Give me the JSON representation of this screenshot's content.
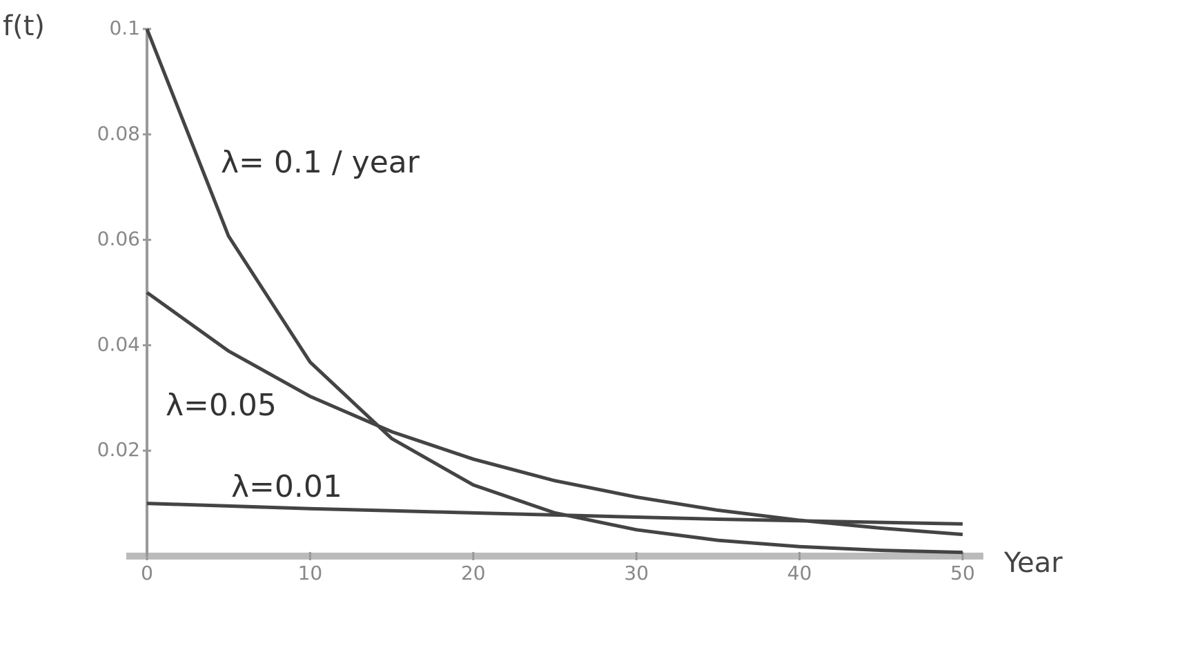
{
  "chart_data": {
    "type": "line",
    "y_label": "f(t)",
    "x_label": "Year",
    "x": [
      0,
      5,
      10,
      15,
      20,
      25,
      30,
      35,
      40,
      45,
      50
    ],
    "series": [
      {
        "name": "λ= 0.1 / year",
        "color": "#444444",
        "values": [
          0.1,
          0.0607,
          0.0368,
          0.0223,
          0.0135,
          0.0082,
          0.005,
          0.003,
          0.0018,
          0.0011,
          0.0007
        ]
      },
      {
        "name": "λ=0.05",
        "color": "#444444",
        "values": [
          0.05,
          0.0389,
          0.0303,
          0.0236,
          0.0184,
          0.0143,
          0.0112,
          0.0087,
          0.0068,
          0.0053,
          0.0041
        ]
      },
      {
        "name": "λ=0.01",
        "color": "#444444",
        "values": [
          0.01,
          0.0095,
          0.009,
          0.0086,
          0.0082,
          0.0078,
          0.0074,
          0.007,
          0.0067,
          0.0064,
          0.0061
        ]
      }
    ],
    "xlim": [
      0,
      50
    ],
    "ylim": [
      0,
      0.1
    ],
    "xticks": [
      0,
      10,
      20,
      30,
      40,
      50
    ],
    "yticks": [
      0.02,
      0.04,
      0.06,
      0.08,
      0.1
    ]
  }
}
